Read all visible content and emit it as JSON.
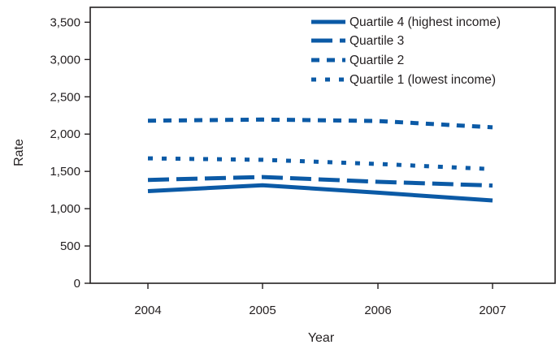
{
  "chart_data": {
    "type": "line",
    "title": "",
    "xlabel": "Year",
    "ylabel": "Rate",
    "categories": [
      "2004",
      "2005",
      "2006",
      "2007"
    ],
    "ylim": [
      0,
      3700
    ],
    "yticks": [
      0,
      500,
      1000,
      1500,
      2000,
      2500,
      3000,
      3500
    ],
    "ytick_labels": [
      "0",
      "500",
      "1,000",
      "1,500",
      "2,000",
      "2,500",
      "3,000",
      "3,500"
    ],
    "grid": false,
    "legend_position": "top-right",
    "series_color": "#0b5aa6",
    "series": [
      {
        "name": "Quartile 4 (highest income)",
        "style": "solid",
        "values": [
          1235,
          1315,
          1215,
          1110
        ]
      },
      {
        "name": "Quartile 3",
        "style": "long-dash",
        "values": [
          1385,
          1425,
          1360,
          1310
        ]
      },
      {
        "name": "Quartile 2",
        "style": "short-dash",
        "values": [
          2180,
          2195,
          2175,
          2090
        ]
      },
      {
        "name": "Quartile 1 (lowest income)",
        "style": "dotted",
        "values": [
          1675,
          1655,
          1600,
          1530
        ]
      }
    ]
  }
}
